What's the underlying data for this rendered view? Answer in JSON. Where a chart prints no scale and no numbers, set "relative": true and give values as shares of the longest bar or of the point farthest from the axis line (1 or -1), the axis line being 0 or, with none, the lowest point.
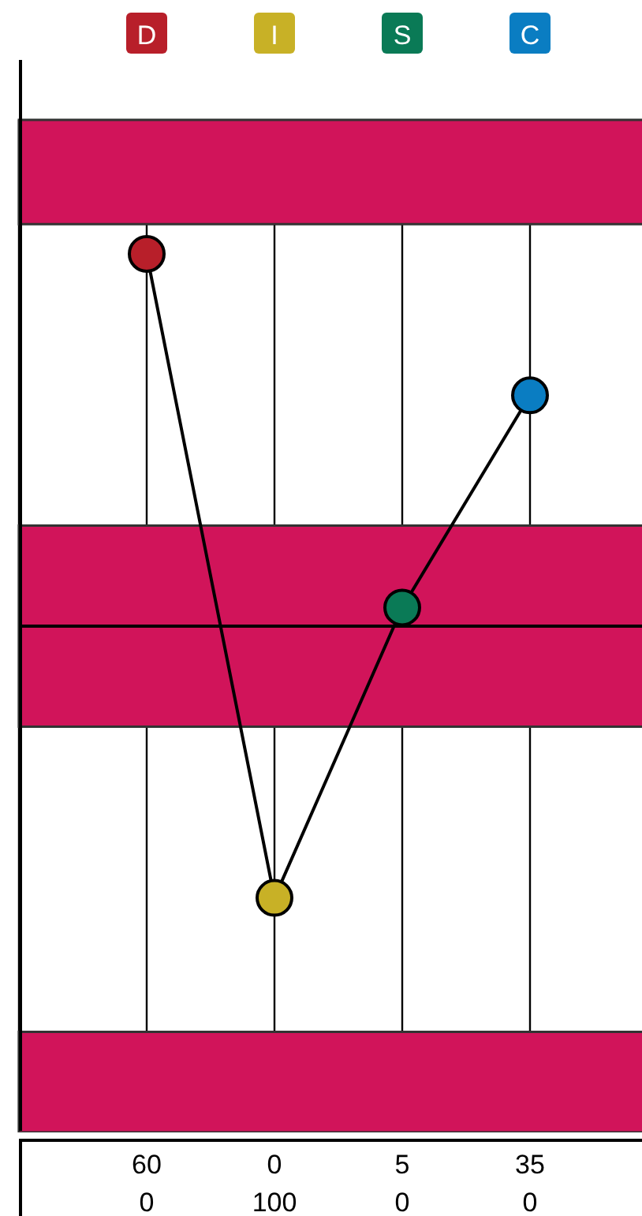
{
  "chart_data": {
    "type": "line",
    "relative": true,
    "categories": [
      "D",
      "I",
      "S",
      "C"
    ],
    "series": [
      {
        "color": "#000000",
        "colors": [
          "#b81f2a",
          "#c8b126",
          "#0a7a56",
          "#0a7dc2"
        ],
        "values": [
          1,
          -0.73,
          0.05,
          0.62
        ]
      }
    ],
    "marker": "circle",
    "line_style": "solid",
    "grid": "x",
    "bands": [
      {
        "axis": "y",
        "from": 1.08,
        "to": 1.36,
        "color": "#d1145a"
      },
      {
        "axis": "y",
        "from": -0.27,
        "to": 0.27,
        "color": "#d1145a"
      },
      {
        "axis": "y",
        "from": -1.36,
        "to": -1.09,
        "color": "#d1145a"
      }
    ],
    "annotations": [
      "60",
      "0",
      "5",
      "35",
      "0",
      "100",
      "0",
      "0"
    ]
  }
}
